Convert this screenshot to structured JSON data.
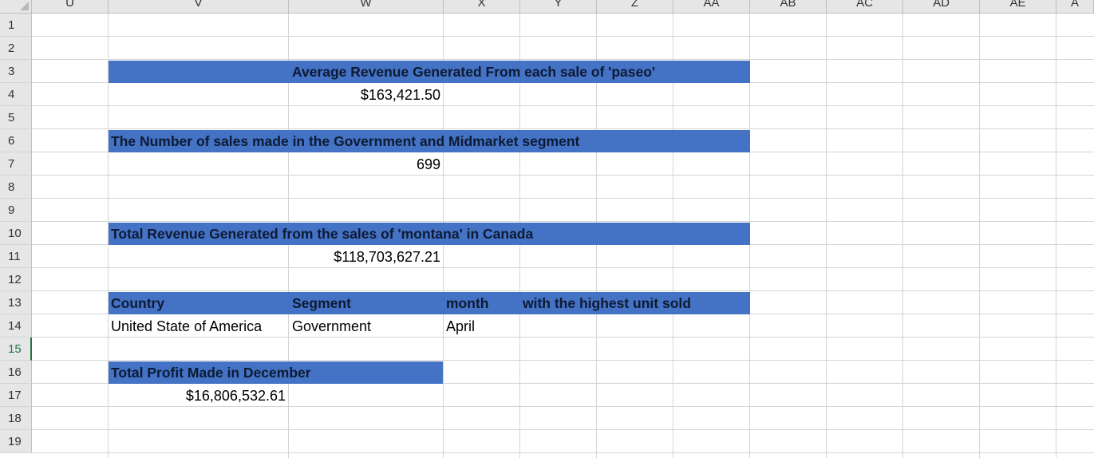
{
  "columns": [
    "U",
    "V",
    "W",
    "X",
    "Y",
    "Z",
    "AA",
    "AB",
    "AC",
    "AD",
    "AE",
    "A"
  ],
  "rows": [
    "1",
    "2",
    "3",
    "4",
    "5",
    "6",
    "7",
    "8",
    "9",
    "10",
    "11",
    "12",
    "13",
    "14",
    "15",
    "16",
    "17",
    "18",
    "19"
  ],
  "active_row": "15",
  "cells": {
    "avg_revenue_title": "Average Revenue Generated From each sale of 'paseo'",
    "avg_revenue_value": "$163,421.50",
    "num_sales_title": "The Number of sales made in the Government and Midmarket segment",
    "num_sales_value": "699",
    "total_revenue_title": "Total Revenue Generated from the sales of 'montana' in Canada",
    "total_revenue_value": "$118,703,627.21",
    "country_header": "Country",
    "segment_header": "Segment",
    "month_header": "month",
    "highest_units_header": "with  the highest unit sold",
    "country_value": "United State of America",
    "segment_value": "Government",
    "month_value": "April",
    "total_profit_title": "Total Profit Made in December",
    "total_profit_value": "$16,806,532.61"
  },
  "colors": {
    "header_band": "#4472c4",
    "grid_line": "#d4d4d4",
    "header_bg": "#e6e6e6",
    "active_row_header": "#217346"
  }
}
